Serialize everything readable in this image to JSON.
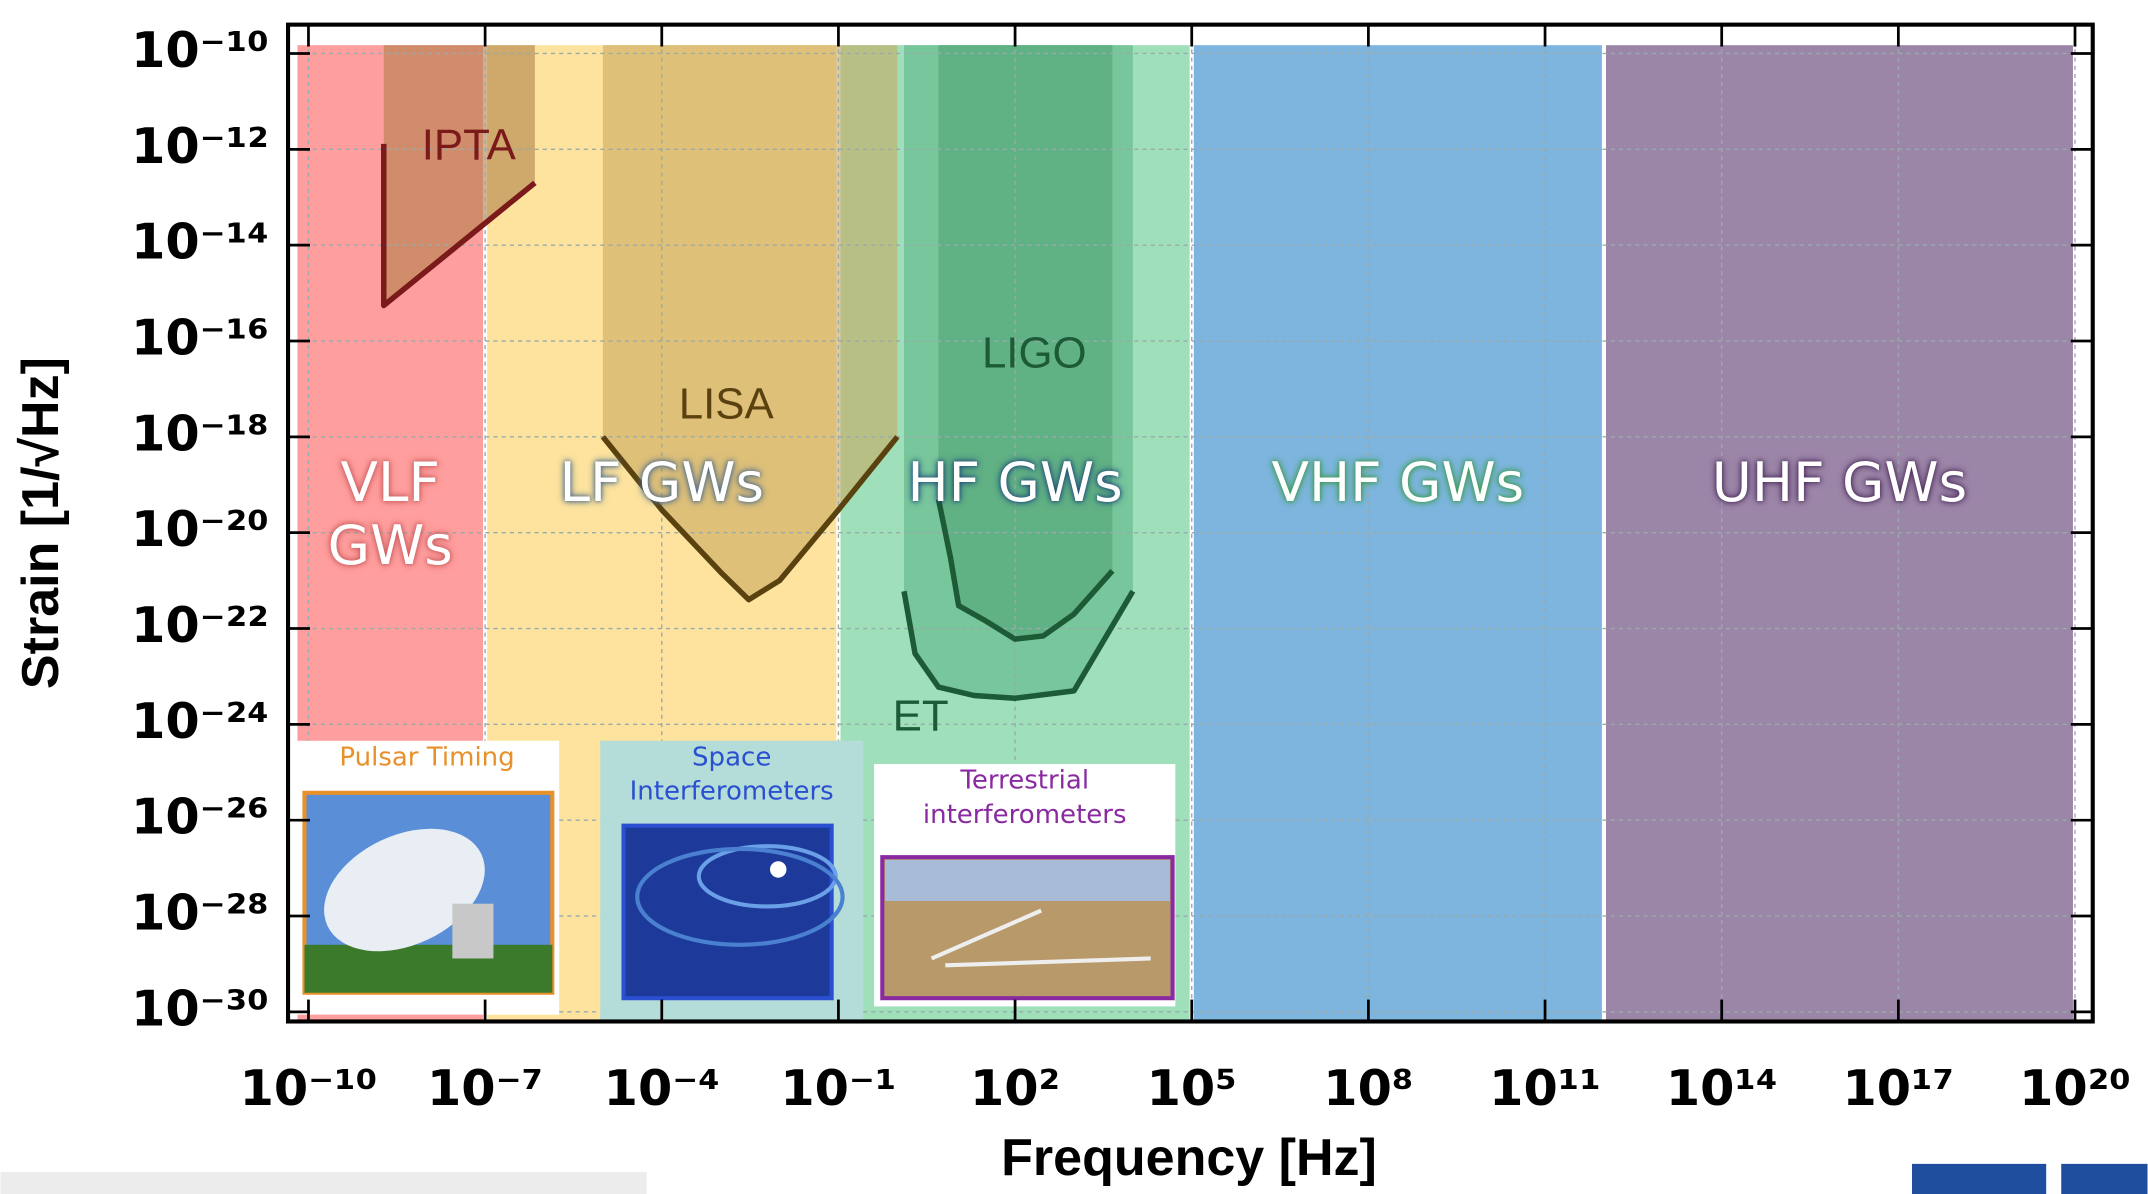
{
  "chart_data": {
    "type": "band-sensitivity",
    "x_label": "Frequency [Hz]",
    "y_label": "Strain [1/√Hz]",
    "xscale": "log",
    "yscale": "log",
    "xlim": [
      4.5e-11,
      2e+20
    ],
    "ylim": [
      6.3e-31,
      4e-10
    ],
    "xticks": [
      {
        "value": 1e-10,
        "label": "10⁻¹⁰"
      },
      {
        "value": 1e-07,
        "label": "10⁻⁷"
      },
      {
        "value": 0.0001,
        "label": "10⁻⁴"
      },
      {
        "value": 0.1,
        "label": "10⁻¹"
      },
      {
        "value": 100.0,
        "label": "10²"
      },
      {
        "value": 100000.0,
        "label": "10⁵"
      },
      {
        "value": 100000000.0,
        "label": "10⁸"
      },
      {
        "value": 100000000000.0,
        "label": "10¹¹"
      },
      {
        "value": 100000000000000.0,
        "label": "10¹⁴"
      },
      {
        "value": 1e+17,
        "label": "10¹⁷"
      },
      {
        "value": 1e+20,
        "label": "10²⁰"
      }
    ],
    "yticks": [
      {
        "value": 1e-10,
        "label": "10⁻¹⁰"
      },
      {
        "value": 1e-12,
        "label": "10⁻¹²"
      },
      {
        "value": 1e-14,
        "label": "10⁻¹⁴"
      },
      {
        "value": 1e-16,
        "label": "10⁻¹⁶"
      },
      {
        "value": 1e-18,
        "label": "10⁻¹⁸"
      },
      {
        "value": 1e-20,
        "label": "10⁻²⁰"
      },
      {
        "value": 1e-22,
        "label": "10⁻²²"
      },
      {
        "value": 1e-24,
        "label": "10⁻²⁴"
      },
      {
        "value": 1e-26,
        "label": "10⁻²⁶"
      },
      {
        "value": 1e-28,
        "label": "10⁻²⁸"
      },
      {
        "value": 1e-30,
        "label": "10⁻³⁰"
      }
    ],
    "grid": true,
    "bands": [
      {
        "name": "VLF GWs",
        "range": [
          6e-11,
          1e-07
        ],
        "color": "#ff9e9e",
        "glow": "#c85a5a"
      },
      {
        "name": "LF GWs",
        "range": [
          1e-07,
          0.1
        ],
        "color": "#fde39e",
        "glow": "#4a6a8a"
      },
      {
        "name": "HF GWs",
        "range": [
          0.1,
          100000.0
        ],
        "color": "#9fe0bb",
        "glow": "#1e4a7a"
      },
      {
        "name": "VHF GWs",
        "range": [
          100000.0,
          1000000000000.0
        ],
        "color": "#7db5de",
        "glow": "#3a9a4a"
      },
      {
        "name": "UHF GWs",
        "range": [
          1000000000000.0,
          1e+20
        ],
        "color": "#9c86a8",
        "glow": "#4a2a5a"
      }
    ],
    "series": [
      {
        "name": "IPTA",
        "color": "#7a1a1a",
        "shade": "#b0804a",
        "x": [
          1.9e-09,
          1.9e-09,
          7e-07
        ],
        "y": [
          1.3e-12,
          5.5e-16,
          2e-13
        ]
      },
      {
        "name": "LISA",
        "color": "#5a4210",
        "shade": "#c9a860",
        "x": [
          1e-05,
          0.0001,
          0.001,
          0.003,
          0.01,
          0.1,
          1
        ],
        "y": [
          1e-18,
          3e-20,
          1.5e-21,
          4e-22,
          1e-21,
          3e-20,
          1e-18
        ]
      },
      {
        "name": "LIGO",
        "color": "#1d5a36",
        "shade": "#3c8a5a",
        "x": [
          5,
          8,
          11,
          30,
          100,
          300,
          1000,
          4500
        ],
        "y": [
          5e-20,
          3e-21,
          3e-22,
          1.5e-22,
          6e-23,
          7e-23,
          2e-22,
          1.6e-21
        ]
      },
      {
        "name": "ET",
        "color": "#1d5a36",
        "shade": "#5fb487",
        "x": [
          1.3,
          2,
          5,
          20,
          100,
          1000,
          10000
        ],
        "y": [
          6e-22,
          3e-23,
          6e-24,
          4e-24,
          3.5e-24,
          5e-24,
          6e-22
        ]
      }
    ],
    "insets": [
      {
        "caption": "Pulsar Timing",
        "color": "#e8902a"
      },
      {
        "caption": "Space Interferometers",
        "color": "#2a4fd0"
      },
      {
        "caption": "Terrestrial interferometers",
        "color": "#8a2aa0"
      }
    ]
  }
}
